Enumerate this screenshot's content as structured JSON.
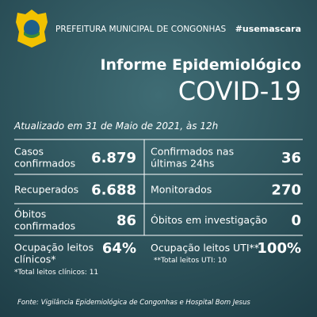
{
  "header": {
    "organization": "PREFEITURA MUNICIPAL DE CONGONHAS",
    "hashtag": "#usemascara"
  },
  "title": "Informe Epidemiológico",
  "subtitle": "COVID-19",
  "updated": "Atualizado em 31 de Maio de 2021, às 12h",
  "stats": [
    {
      "label": [
        "Casos",
        "confirmados"
      ],
      "value": "6.879"
    },
    {
      "label": [
        "Confirmados nas",
        "últimas 24hs"
      ],
      "value": "36"
    },
    {
      "label": [
        "Recuperados"
      ],
      "value": "6.688"
    },
    {
      "label": [
        "Monitorados"
      ],
      "value": "270"
    },
    {
      "label": [
        "Óbitos",
        "confirmados"
      ],
      "value": "86"
    },
    {
      "label": [
        "Óbitos em investigação"
      ],
      "value": "0"
    },
    {
      "label": [
        "Ocupação leitos",
        "clínicos*"
      ],
      "value": "64%",
      "note": "*Total leitos clínicos: 11"
    },
    {
      "label": [
        "Ocupação leitos UTI**"
      ],
      "value": "100%",
      "note": "**Total leitos UTI: 10"
    }
  ],
  "source": "Fonte: Vigilância Epidemiológica de Congonhas e Hospital Bom Jesus"
}
